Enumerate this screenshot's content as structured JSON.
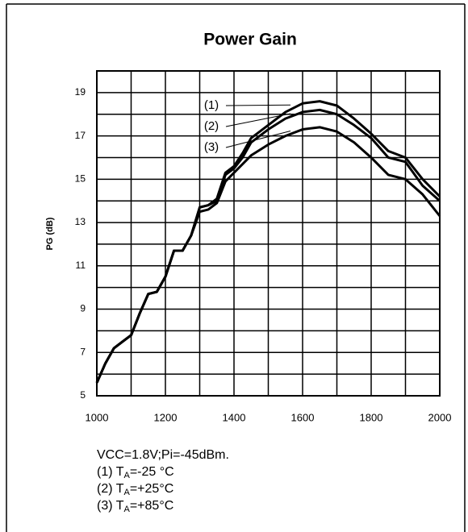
{
  "chart_data": {
    "type": "line",
    "title": "Power Gain",
    "y_label": "PG (dB)",
    "x": [
      1000,
      1025,
      1050,
      1075,
      1100,
      1125,
      1150,
      1175,
      1200,
      1225,
      1250,
      1275,
      1300,
      1325,
      1350,
      1375,
      1400,
      1425,
      1450,
      1500,
      1550,
      1600,
      1650,
      1700,
      1750,
      1800,
      1850,
      1900,
      1950,
      2000
    ],
    "series": [
      {
        "name": "(1)",
        "color": "#000000",
        "values": [
          5.6,
          6.5,
          7.2,
          7.5,
          7.8,
          8.8,
          9.7,
          9.8,
          10.5,
          11.7,
          11.7,
          12.4,
          13.7,
          13.8,
          14.1,
          15.3,
          15.6,
          16.2,
          16.9,
          17.5,
          18.1,
          18.5,
          18.6,
          18.4,
          17.8,
          17.1,
          16.3,
          16.0,
          15.0,
          14.2
        ]
      },
      {
        "name": "(2)",
        "color": "#000000",
        "values": [
          5.6,
          6.5,
          7.2,
          7.5,
          7.8,
          8.8,
          9.7,
          9.8,
          10.5,
          11.7,
          11.7,
          12.4,
          13.7,
          13.8,
          14.0,
          15.2,
          15.5,
          16.0,
          16.7,
          17.3,
          17.8,
          18.1,
          18.2,
          18.0,
          17.5,
          16.9,
          16.0,
          15.8,
          14.7,
          14.0
        ]
      },
      {
        "name": "(3)",
        "color": "#000000",
        "values": [
          5.6,
          6.5,
          7.2,
          7.5,
          7.8,
          8.8,
          9.7,
          9.8,
          10.5,
          11.7,
          11.7,
          12.4,
          13.5,
          13.6,
          13.9,
          14.9,
          15.3,
          15.7,
          16.1,
          16.6,
          17.0,
          17.3,
          17.4,
          17.2,
          16.7,
          16.0,
          15.2,
          15.0,
          14.3,
          13.3
        ]
      }
    ],
    "xlim": [
      1000,
      2000
    ],
    "xticks": [
      1000,
      1200,
      1400,
      1600,
      1800,
      2000
    ],
    "x_minor_ticks": [
      1100,
      1300,
      1500,
      1700,
      1900
    ],
    "ylim": [
      5,
      20
    ],
    "yticks": [
      5,
      7,
      9,
      11,
      13,
      15,
      17,
      19
    ],
    "y_minor_ticks": [
      6,
      8,
      10,
      12,
      14,
      16,
      18,
      20
    ],
    "grid": true,
    "notes": [
      "VCC=1.8V;Pi=-45dBm.",
      [
        "(1) T",
        "A",
        "=-25 °C"
      ],
      [
        "(2) T",
        "A",
        "=+25°C"
      ],
      [
        "(3) T",
        "A",
        "=+85°C"
      ]
    ]
  }
}
